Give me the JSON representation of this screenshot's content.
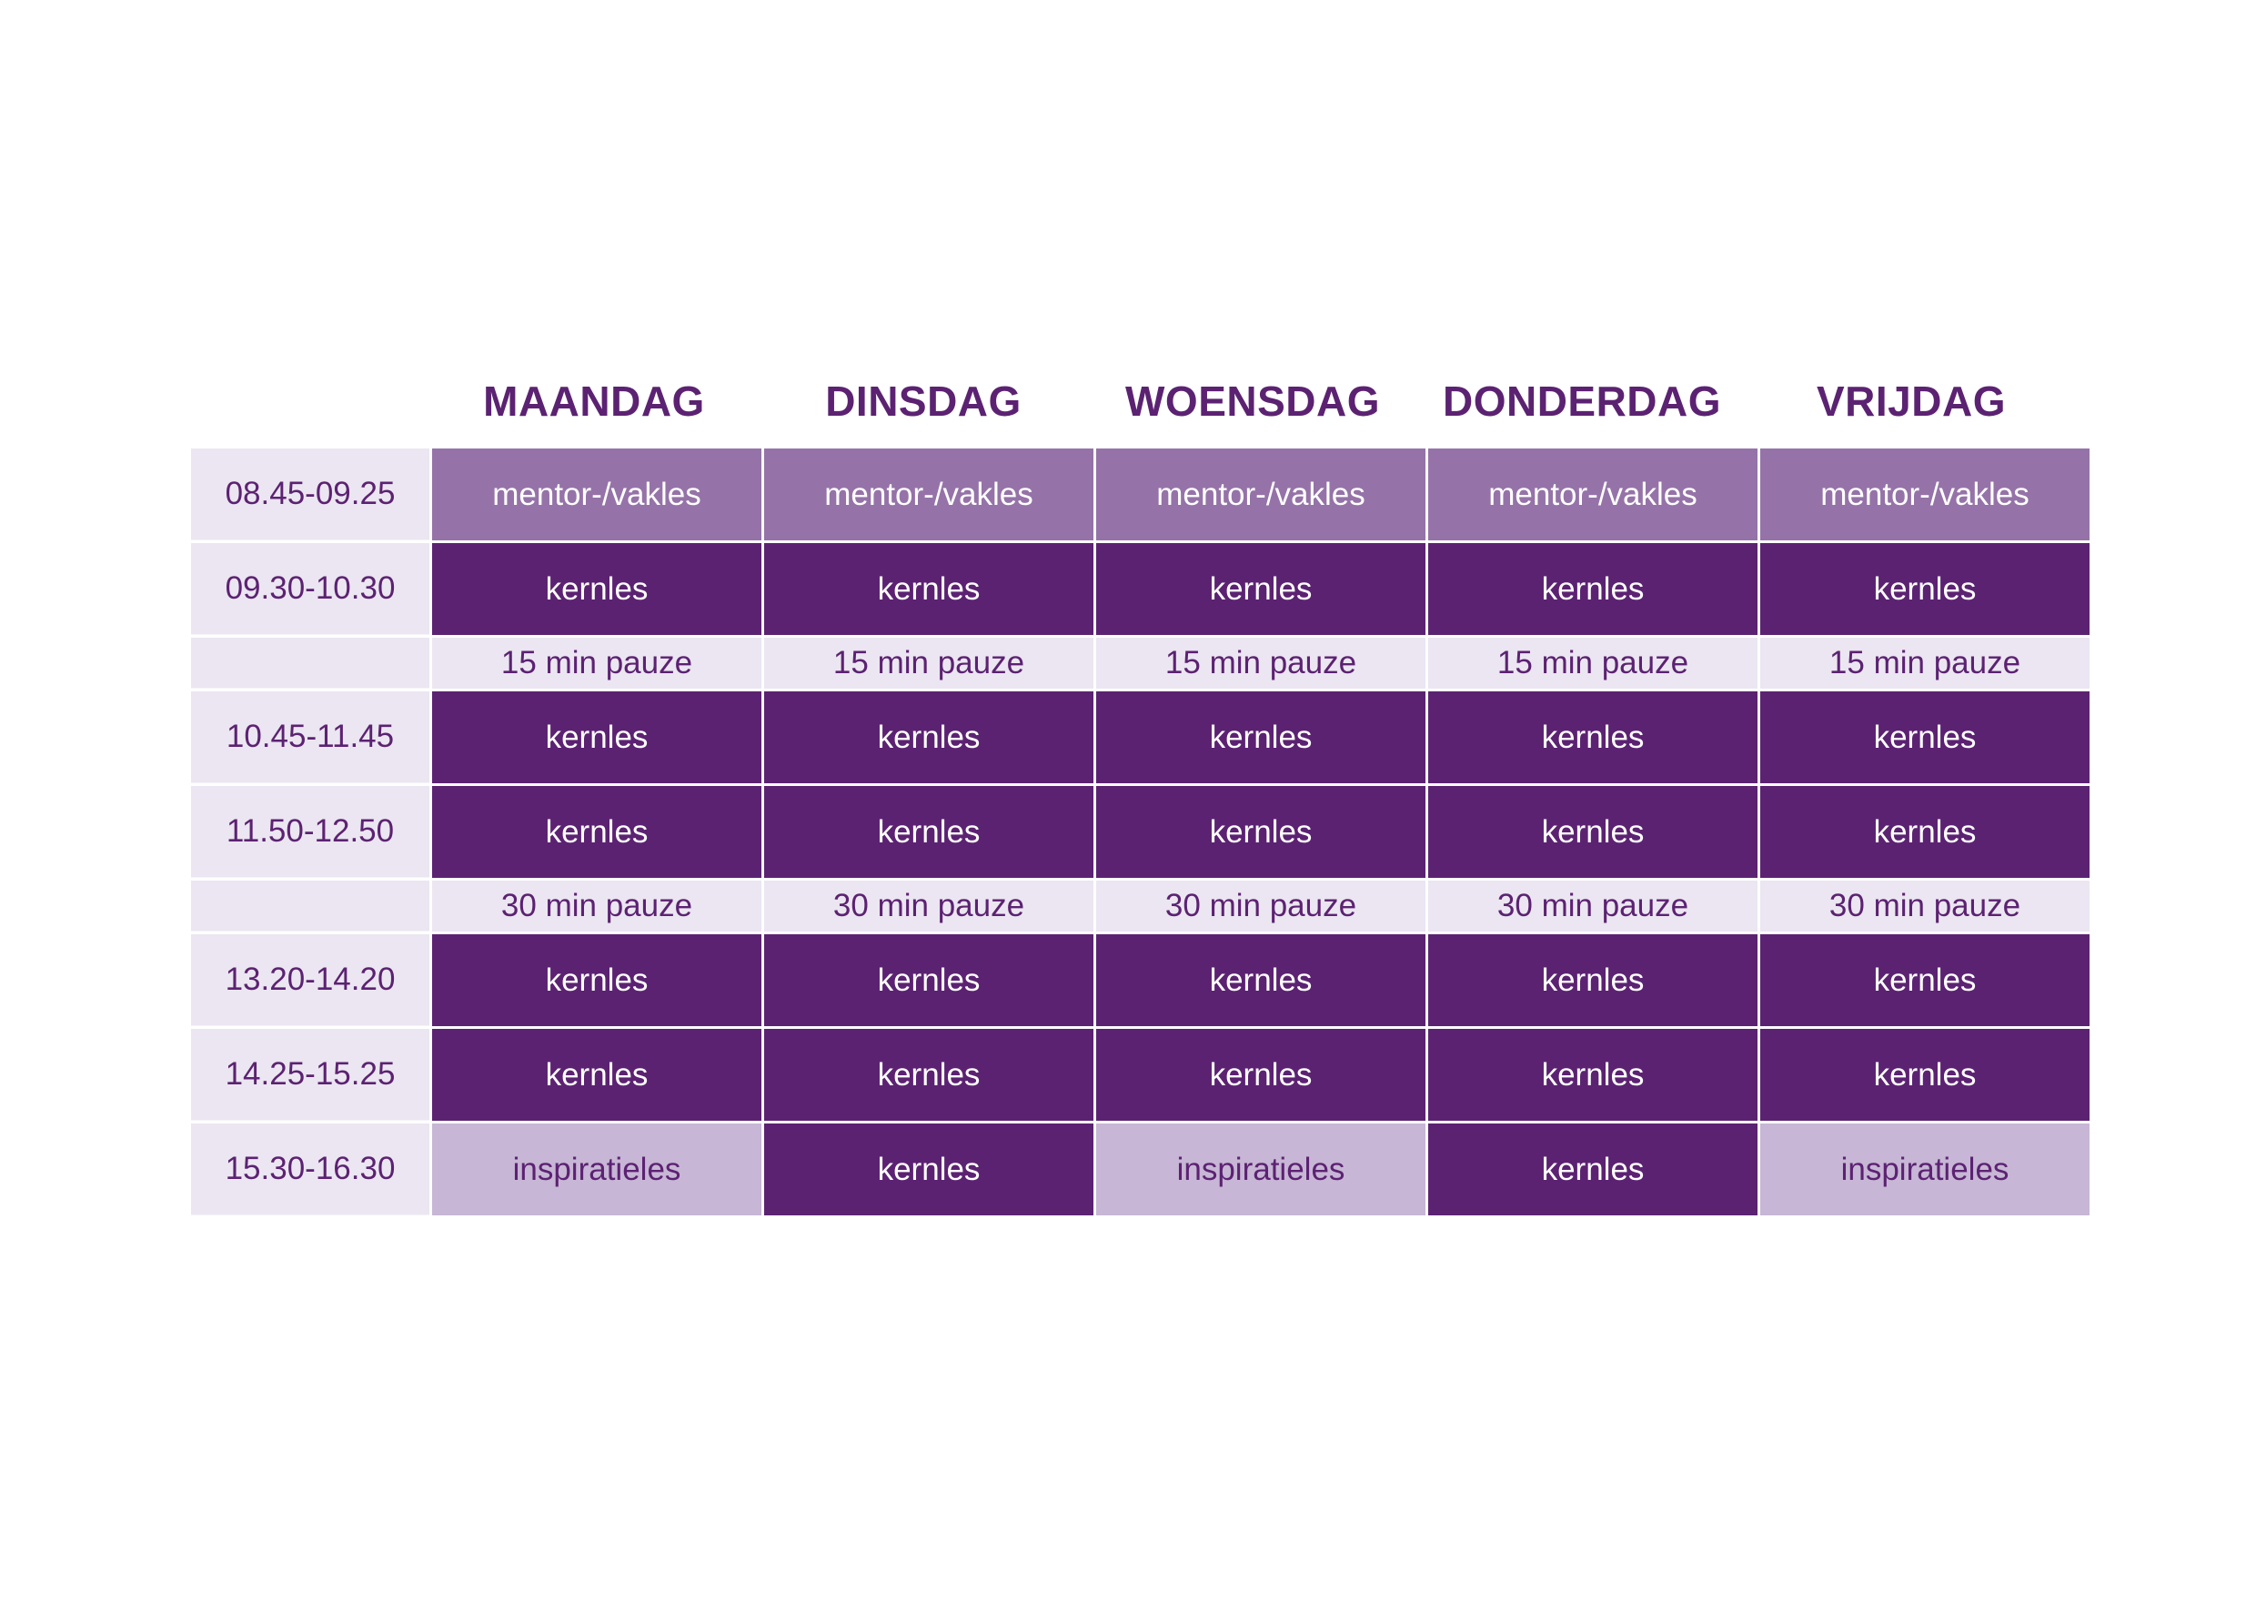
{
  "days": [
    "MAANDAG",
    "DINSDAG",
    "WOENSDAG",
    "DONDERDAG",
    "VRIJDAG"
  ],
  "colors": {
    "mentor": "#9573a8",
    "kernles": "#5c2272",
    "pauze": "#ebe6f1",
    "inspiratieles": "#c7b6d5",
    "text_dark": "#5c2272"
  },
  "rows": [
    {
      "time": "08.45-09.25",
      "kind": "lesson",
      "cells": [
        {
          "text": "mentor-/vakles",
          "type": "mentor"
        },
        {
          "text": "mentor-/vakles",
          "type": "mentor"
        },
        {
          "text": "mentor-/vakles",
          "type": "mentor"
        },
        {
          "text": "mentor-/vakles",
          "type": "mentor"
        },
        {
          "text": "mentor-/vakles",
          "type": "mentor"
        }
      ]
    },
    {
      "time": "09.30-10.30",
      "kind": "lesson",
      "cells": [
        {
          "text": "kernles",
          "type": "kern"
        },
        {
          "text": "kernles",
          "type": "kern"
        },
        {
          "text": "kernles",
          "type": "kern"
        },
        {
          "text": "kernles",
          "type": "kern"
        },
        {
          "text": "kernles",
          "type": "kern"
        }
      ]
    },
    {
      "time": "",
      "kind": "pause",
      "cells": [
        {
          "text": "15 min pauze",
          "type": "pause"
        },
        {
          "text": "15 min pauze",
          "type": "pause"
        },
        {
          "text": "15 min pauze",
          "type": "pause"
        },
        {
          "text": "15 min pauze",
          "type": "pause"
        },
        {
          "text": "15 min pauze",
          "type": "pause"
        }
      ]
    },
    {
      "time": "10.45-11.45",
      "kind": "lesson",
      "cells": [
        {
          "text": "kernles",
          "type": "kern"
        },
        {
          "text": "kernles",
          "type": "kern"
        },
        {
          "text": "kernles",
          "type": "kern"
        },
        {
          "text": "kernles",
          "type": "kern"
        },
        {
          "text": "kernles",
          "type": "kern"
        }
      ]
    },
    {
      "time": "11.50-12.50",
      "kind": "lesson",
      "cells": [
        {
          "text": "kernles",
          "type": "kern"
        },
        {
          "text": "kernles",
          "type": "kern"
        },
        {
          "text": "kernles",
          "type": "kern"
        },
        {
          "text": "kernles",
          "type": "kern"
        },
        {
          "text": "kernles",
          "type": "kern"
        }
      ]
    },
    {
      "time": "",
      "kind": "pause",
      "cells": [
        {
          "text": "30 min pauze",
          "type": "pause"
        },
        {
          "text": "30 min pauze",
          "type": "pause"
        },
        {
          "text": "30 min pauze",
          "type": "pause"
        },
        {
          "text": "30 min pauze",
          "type": "pause"
        },
        {
          "text": "30 min pauze",
          "type": "pause"
        }
      ]
    },
    {
      "time": "13.20-14.20",
      "kind": "lesson",
      "cells": [
        {
          "text": "kernles",
          "type": "kern"
        },
        {
          "text": "kernles",
          "type": "kern"
        },
        {
          "text": "kernles",
          "type": "kern"
        },
        {
          "text": "kernles",
          "type": "kern"
        },
        {
          "text": "kernles",
          "type": "kern"
        }
      ]
    },
    {
      "time": "14.25-15.25",
      "kind": "lesson",
      "cells": [
        {
          "text": "kernles",
          "type": "kern"
        },
        {
          "text": "kernles",
          "type": "kern"
        },
        {
          "text": "kernles",
          "type": "kern"
        },
        {
          "text": "kernles",
          "type": "kern"
        },
        {
          "text": "kernles",
          "type": "kern"
        }
      ]
    },
    {
      "time": "15.30-16.30",
      "kind": "lesson",
      "cells": [
        {
          "text": "inspiratieles",
          "type": "insp"
        },
        {
          "text": "kernles",
          "type": "kern"
        },
        {
          "text": "inspiratieles",
          "type": "insp"
        },
        {
          "text": "kernles",
          "type": "kern"
        },
        {
          "text": "inspiratieles",
          "type": "insp"
        }
      ]
    }
  ]
}
